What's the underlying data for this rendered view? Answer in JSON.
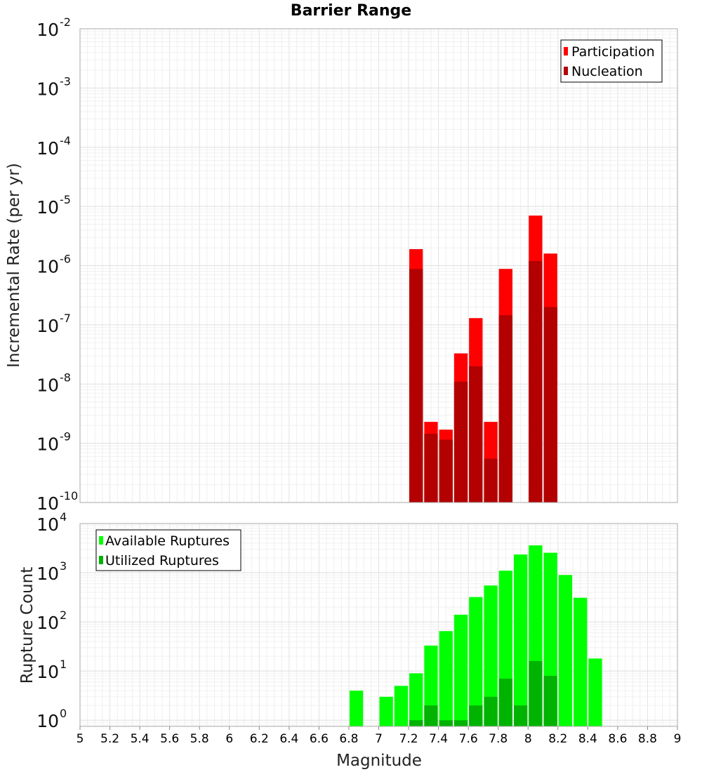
{
  "chart_data": [
    {
      "type": "bar",
      "title": "Barrier Range",
      "ylabel": "Incremental Rate (per yr)",
      "xlabel": "",
      "yscale": "log",
      "ylim": [
        1e-10,
        0.01
      ],
      "xlim": [
        5,
        9
      ],
      "y_ticks": [
        {
          "base": "10",
          "exp": "-2"
        },
        {
          "base": "10",
          "exp": "-3"
        },
        {
          "base": "10",
          "exp": "-4"
        },
        {
          "base": "10",
          "exp": "-5"
        },
        {
          "base": "10",
          "exp": "-6"
        },
        {
          "base": "10",
          "exp": "-7"
        },
        {
          "base": "10",
          "exp": "-8"
        },
        {
          "base": "10",
          "exp": "-9"
        },
        {
          "base": "10",
          "exp": "-10"
        }
      ],
      "legend_position": "top-right",
      "grid": true,
      "x": [
        7.25,
        7.35,
        7.45,
        7.55,
        7.65,
        7.75,
        7.85,
        8.05,
        8.15
      ],
      "series": [
        {
          "name": "Participation",
          "color": "#ff0000",
          "values": [
            1.9e-06,
            2.3e-09,
            1.7e-09,
            3.3e-08,
            1.3e-07,
            2.3e-09,
            8.8e-07,
            7e-06,
            1.6e-06
          ]
        },
        {
          "name": "Nucleation",
          "color": "#b30000",
          "values": [
            8.8e-07,
            1.45e-09,
            1.15e-09,
            1.1e-08,
            2e-08,
            5.5e-10,
            1.45e-07,
            1.2e-06,
            2e-07
          ]
        }
      ]
    },
    {
      "type": "bar",
      "title": "",
      "ylabel": "Rupture Count",
      "xlabel": "Magnitude",
      "yscale": "log",
      "ylim": [
        0.75,
        10000
      ],
      "xlim": [
        5,
        9
      ],
      "y_ticks": [
        {
          "base": "10",
          "exp": "4",
          "value": 10000
        },
        {
          "base": "10",
          "exp": "3",
          "value": 1000
        },
        {
          "base": "10",
          "exp": "2",
          "value": 100
        },
        {
          "base": "10",
          "exp": "1",
          "value": 10
        },
        {
          "base": "10",
          "exp": "0",
          "value": 1
        }
      ],
      "x_tick_labels": [
        "5",
        "5.2",
        "5.4",
        "5.6",
        "5.8",
        "6",
        "6.2",
        "6.4",
        "6.6",
        "6.8",
        "7",
        "7.2",
        "7.4",
        "7.6",
        "7.8",
        "8",
        "8.2",
        "8.4",
        "8.6",
        "8.8",
        "9"
      ],
      "legend_position": "top-left",
      "grid": true,
      "x": [
        6.85,
        7.05,
        7.15,
        7.25,
        7.35,
        7.45,
        7.55,
        7.65,
        7.75,
        7.85,
        7.95,
        8.05,
        8.15,
        8.25,
        8.35,
        8.45
      ],
      "series": [
        {
          "name": "Available Ruptures",
          "color": "#00ff00",
          "values": [
            4,
            3,
            5,
            9,
            33,
            65,
            140,
            320,
            550,
            1100,
            2350,
            3600,
            2550,
            900,
            310,
            18
          ]
        },
        {
          "name": "Utilized Ruptures",
          "color": "#00b300",
          "values": [
            0,
            0,
            0,
            1,
            2,
            1,
            1,
            2,
            3,
            7,
            2,
            16,
            8,
            0,
            0,
            0
          ]
        }
      ]
    }
  ]
}
